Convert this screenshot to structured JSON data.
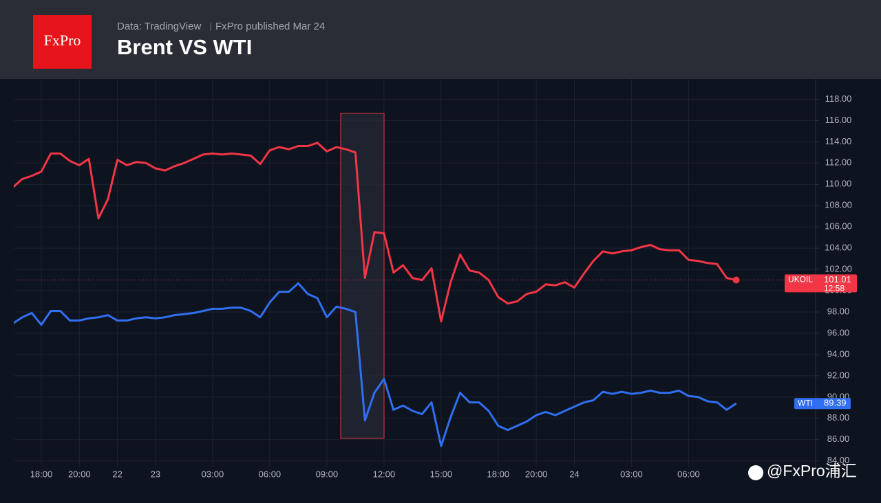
{
  "header": {
    "logo": "FxPro",
    "source": "Data: TradingView",
    "published": "FxPro published Mar 24",
    "title": "Brent VS WTI"
  },
  "watermark": "@FxPro浦汇",
  "chart_data": {
    "type": "line",
    "categories": [
      null,
      null,
      null,
      "18:00",
      null,
      null,
      null,
      "20:00",
      null,
      null,
      null,
      "22",
      null,
      null,
      null,
      "23",
      null,
      null,
      null,
      null,
      null,
      "03:00",
      null,
      null,
      null,
      null,
      null,
      "06:00",
      null,
      null,
      null,
      null,
      null,
      "09:00",
      null,
      null,
      null,
      null,
      null,
      "12:00",
      null,
      null,
      null,
      null,
      null,
      "15:00",
      null,
      null,
      null,
      null,
      null,
      "18:00",
      null,
      null,
      null,
      "20:00",
      null,
      null,
      null,
      "24",
      null,
      null,
      null,
      null,
      null,
      "03:00",
      null,
      null,
      null,
      null,
      null,
      "06:00",
      null,
      null,
      null,
      null,
      null
    ],
    "series": [
      {
        "name": "UKOIL",
        "color": "#f23645",
        "last_label": 101.01,
        "countdown": "12:58",
        "values": [
          109.7,
          110.5,
          110.8,
          111.2,
          112.9,
          112.9,
          112.2,
          111.8,
          112.4,
          106.8,
          108.6,
          112.3,
          111.8,
          112.1,
          112.0,
          111.5,
          111.3,
          111.7,
          112.0,
          112.4,
          112.8,
          112.9,
          112.8,
          112.9,
          112.8,
          112.7,
          111.9,
          113.2,
          113.5,
          113.3,
          113.6,
          113.6,
          113.9,
          113.1,
          113.5,
          113.3,
          113.0,
          101.2,
          105.5,
          105.4,
          101.7,
          102.4,
          101.2,
          101.0,
          102.1,
          97.1,
          100.8,
          103.4,
          101.9,
          101.7,
          101.0,
          99.4,
          98.8,
          99.0,
          99.7,
          99.9,
          100.6,
          100.5,
          100.8,
          100.3,
          101.6,
          102.8,
          103.7,
          103.5,
          103.7,
          103.8,
          104.1,
          104.3,
          103.9,
          103.8,
          103.8,
          102.9,
          102.8,
          102.6,
          102.5,
          101.2,
          101.0
        ]
      },
      {
        "name": "WTI",
        "color": "#2f6ff0",
        "last_label": 89.39,
        "values": [
          96.9,
          97.5,
          97.9,
          96.8,
          98.1,
          98.1,
          97.2,
          97.2,
          97.4,
          97.5,
          97.7,
          97.2,
          97.2,
          97.4,
          97.5,
          97.4,
          97.5,
          97.7,
          97.8,
          97.9,
          98.1,
          98.3,
          98.3,
          98.4,
          98.4,
          98.1,
          97.5,
          98.9,
          99.9,
          99.9,
          100.7,
          99.7,
          99.3,
          97.5,
          98.5,
          98.3,
          98.0,
          87.8,
          90.4,
          91.7,
          88.8,
          89.2,
          88.7,
          88.4,
          89.5,
          85.4,
          88.1,
          90.4,
          89.5,
          89.5,
          88.7,
          87.3,
          86.9,
          87.3,
          87.7,
          88.3,
          88.6,
          88.3,
          88.7,
          89.1,
          89.5,
          89.7,
          90.5,
          90.3,
          90.5,
          90.3,
          90.4,
          90.6,
          90.4,
          90.4,
          90.6,
          90.1,
          90.0,
          89.6,
          89.5,
          88.8,
          89.4
        ]
      }
    ],
    "ylim": [
      83.4,
      119.9
    ],
    "yticks": [
      {
        "value": 84,
        "label": "84.00"
      },
      {
        "value": 86,
        "label": "86.00"
      },
      {
        "value": 88,
        "label": "88.00"
      },
      {
        "value": 90,
        "label": "90.00"
      },
      {
        "value": 92,
        "label": "92.00"
      },
      {
        "value": 94,
        "label": "94.00"
      },
      {
        "value": 96,
        "label": "96.00"
      },
      {
        "value": 98,
        "label": "98.00"
      },
      {
        "value": 100,
        "label": "100.00"
      },
      {
        "value": 102,
        "label": "102.00"
      },
      {
        "value": 104,
        "label": "104.00"
      },
      {
        "value": 106,
        "label": "106.00"
      },
      {
        "value": 108,
        "label": "108.00"
      },
      {
        "value": 110,
        "label": "110.00"
      },
      {
        "value": 112,
        "label": "112.00"
      },
      {
        "value": 114,
        "label": "114.00"
      },
      {
        "value": 116,
        "label": "116.00"
      },
      {
        "value": 118,
        "label": "118.00"
      }
    ],
    "grid": true
  }
}
